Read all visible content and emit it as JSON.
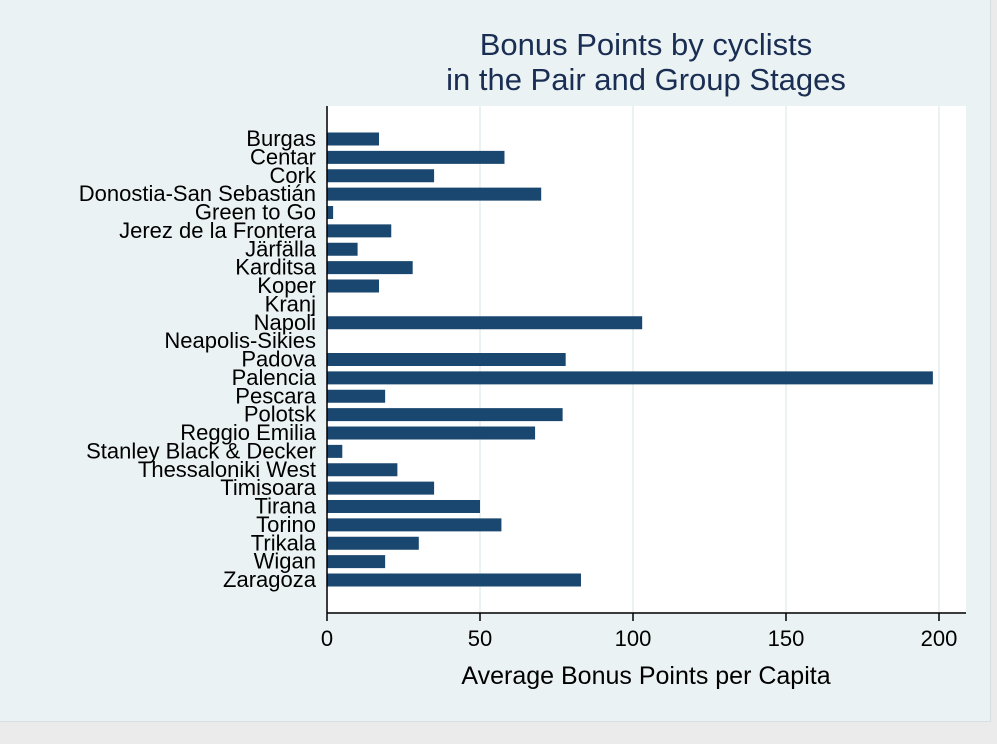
{
  "colors": {
    "bar": "#1a476f",
    "plot_background": "#ffffff",
    "figure_background": "#eaf2f3",
    "grid": "#eaf2f3",
    "title": "#1a2d52"
  },
  "chart_data": {
    "type": "bar",
    "orientation": "horizontal",
    "title": [
      "Bonus Points by cyclists",
      "in the Pair and Group Stages"
    ],
    "xlabel": "Average Bonus Points per Capita",
    "ylabel": "",
    "xlim": [
      0,
      210
    ],
    "xticks": [
      0,
      50,
      100,
      150,
      200
    ],
    "grid": true,
    "legend": "none",
    "categories": [
      "Burgas",
      "Centar",
      "Cork",
      "Donostia-San Sebastián",
      "Green to Go",
      "Jerez de la Frontera",
      "Järfälla",
      "Karditsa",
      "Koper",
      "Kranj",
      "Napoli",
      "Neapolis-Sikies",
      "Padova",
      "Palencia",
      "Pescara",
      "Polotsk",
      "Reggio Emilia",
      "Stanley Black & Decker",
      "Thessaloniki West",
      "Timisoara",
      "Tirana",
      "Torino",
      "Trikala",
      "Wigan",
      "Zaragoza"
    ],
    "values": [
      17,
      58,
      35,
      70,
      2,
      21,
      10,
      28,
      17,
      0,
      103,
      0,
      78,
      198,
      19,
      77,
      68,
      5,
      23,
      35,
      50,
      57,
      30,
      19,
      83
    ]
  }
}
